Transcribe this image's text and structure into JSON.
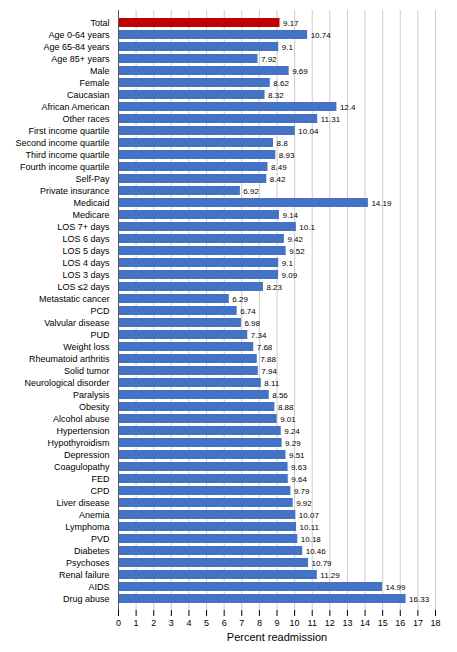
{
  "chart_data": {
    "type": "bar",
    "orientation": "horizontal",
    "categories": [
      "Total",
      "Age 0-64 years",
      "Age 65-84 years",
      "Age 85+ years",
      "Male",
      "Female",
      "Caucasian",
      "African American",
      "Other races",
      "First income quartile",
      "Second income quartile",
      "Third income quartile",
      "Fourth income quartile",
      "Self-Pay",
      "Private insurance",
      "Medicaid",
      "Medicare",
      "LOS 7+ days",
      "LOS 6 days",
      "LOS 5 days",
      "LOS 4 days",
      "LOS 3 days",
      "LOS ≤2 days",
      "Metastatic cancer",
      "PCD",
      "Valvular disease",
      "PUD",
      "Weight loss",
      "Rheumatoid arthritis",
      "Solid tumor",
      "Neurological disorder",
      "Paralysis",
      "Obesity",
      "Alcohol abuse",
      "Hypertension",
      "Hypothyroidism",
      "Depression",
      "Coagulopathy",
      "FED",
      "CPD",
      "Liver disease",
      "Anemia",
      "Lymphoma",
      "PVD",
      "Diabetes",
      "Psychoses",
      "Renal failure",
      "AIDS",
      "Drug abuse"
    ],
    "values": [
      9.17,
      10.74,
      9.1,
      7.92,
      9.69,
      8.62,
      8.32,
      12.4,
      11.31,
      10.04,
      8.8,
      8.93,
      8.49,
      8.42,
      6.92,
      14.19,
      9.14,
      10.1,
      9.42,
      9.52,
      9.1,
      9.09,
      8.23,
      6.29,
      6.74,
      6.98,
      7.34,
      7.68,
      7.88,
      7.94,
      8.11,
      8.56,
      8.88,
      9.01,
      9.24,
      9.29,
      9.51,
      9.63,
      9.64,
      9.79,
      9.92,
      10.07,
      10.11,
      10.18,
      10.46,
      10.79,
      11.29,
      14.99,
      16.33
    ],
    "colors": [
      "#C00000",
      "#4472C4",
      "#4472C4",
      "#4472C4",
      "#4472C4",
      "#4472C4",
      "#4472C4",
      "#4472C4",
      "#4472C4",
      "#4472C4",
      "#4472C4",
      "#4472C4",
      "#4472C4",
      "#4472C4",
      "#4472C4",
      "#4472C4",
      "#4472C4",
      "#4472C4",
      "#4472C4",
      "#4472C4",
      "#4472C4",
      "#4472C4",
      "#4472C4",
      "#4472C4",
      "#4472C4",
      "#4472C4",
      "#4472C4",
      "#4472C4",
      "#4472C4",
      "#4472C4",
      "#4472C4",
      "#4472C4",
      "#4472C4",
      "#4472C4",
      "#4472C4",
      "#4472C4",
      "#4472C4",
      "#4472C4",
      "#4472C4",
      "#4472C4",
      "#4472C4",
      "#4472C4",
      "#4472C4",
      "#4472C4",
      "#4472C4",
      "#4472C4",
      "#4472C4",
      "#4472C4",
      "#4472C4"
    ],
    "xlabel": "Percent readmission",
    "xlim": [
      0,
      18
    ],
    "xticks": [
      0,
      1,
      2,
      3,
      4,
      5,
      6,
      7,
      8,
      9,
      10,
      11,
      12,
      13,
      14,
      15,
      16,
      17,
      18
    ],
    "grid": true,
    "data_labels": true
  }
}
